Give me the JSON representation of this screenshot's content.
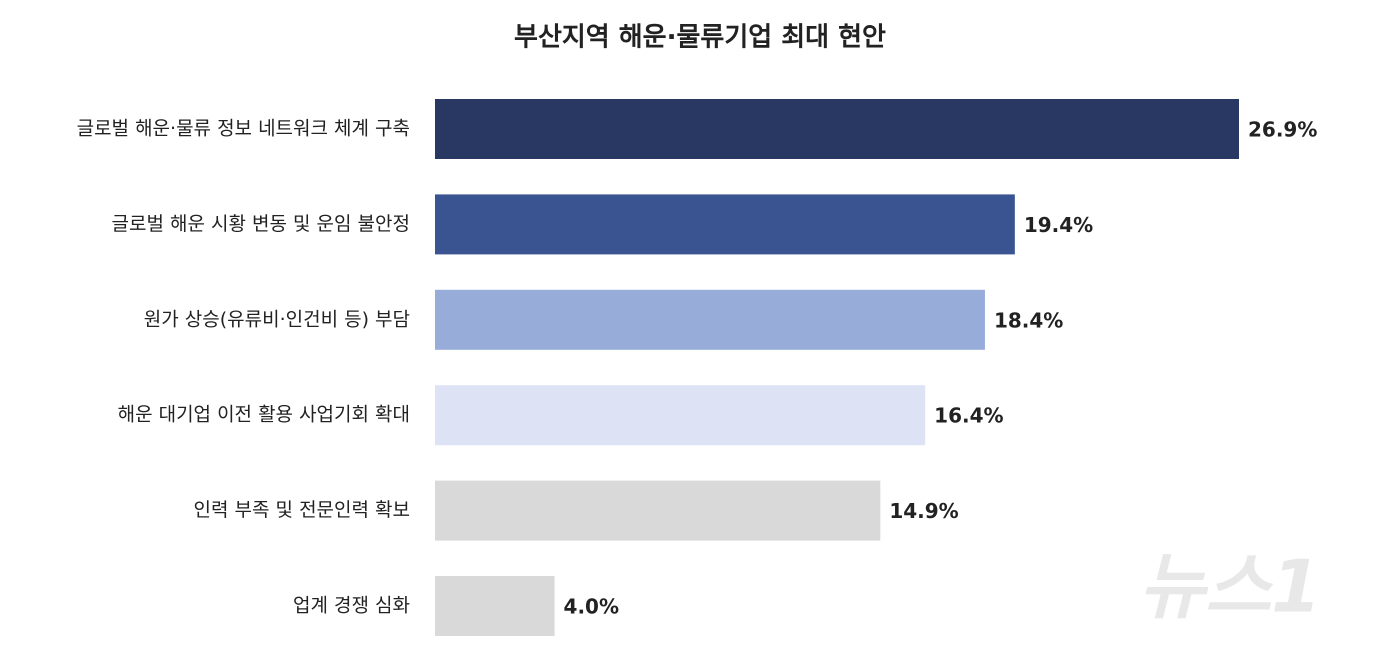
{
  "chart_data": {
    "type": "bar",
    "orientation": "horizontal",
    "title": "부산지역 해운·물류기업 최대 현안",
    "categories": [
      "글로벌 해운·물류 정보 네트워크 체계 구축",
      "글로벌 해운 시황 변동 및 운임 불안정",
      "원가 상승(유류비·인건비 등) 부담",
      "해운 대기업 이전 활용 사업기회 확대",
      "인력 부족 및 전문인력 확보",
      "업계 경쟁 심화"
    ],
    "values": [
      26.9,
      19.4,
      18.4,
      16.4,
      14.9,
      4.0
    ],
    "value_labels": [
      "26.9%",
      "19.4%",
      "18.4%",
      "16.4%",
      "14.9%",
      "4.0%"
    ],
    "colors": [
      "#283862",
      "#3a5391",
      "#98acda",
      "#dde3f4",
      "#d9d9d9",
      "#d9d9d9"
    ]
  },
  "watermark": "뉴스1"
}
